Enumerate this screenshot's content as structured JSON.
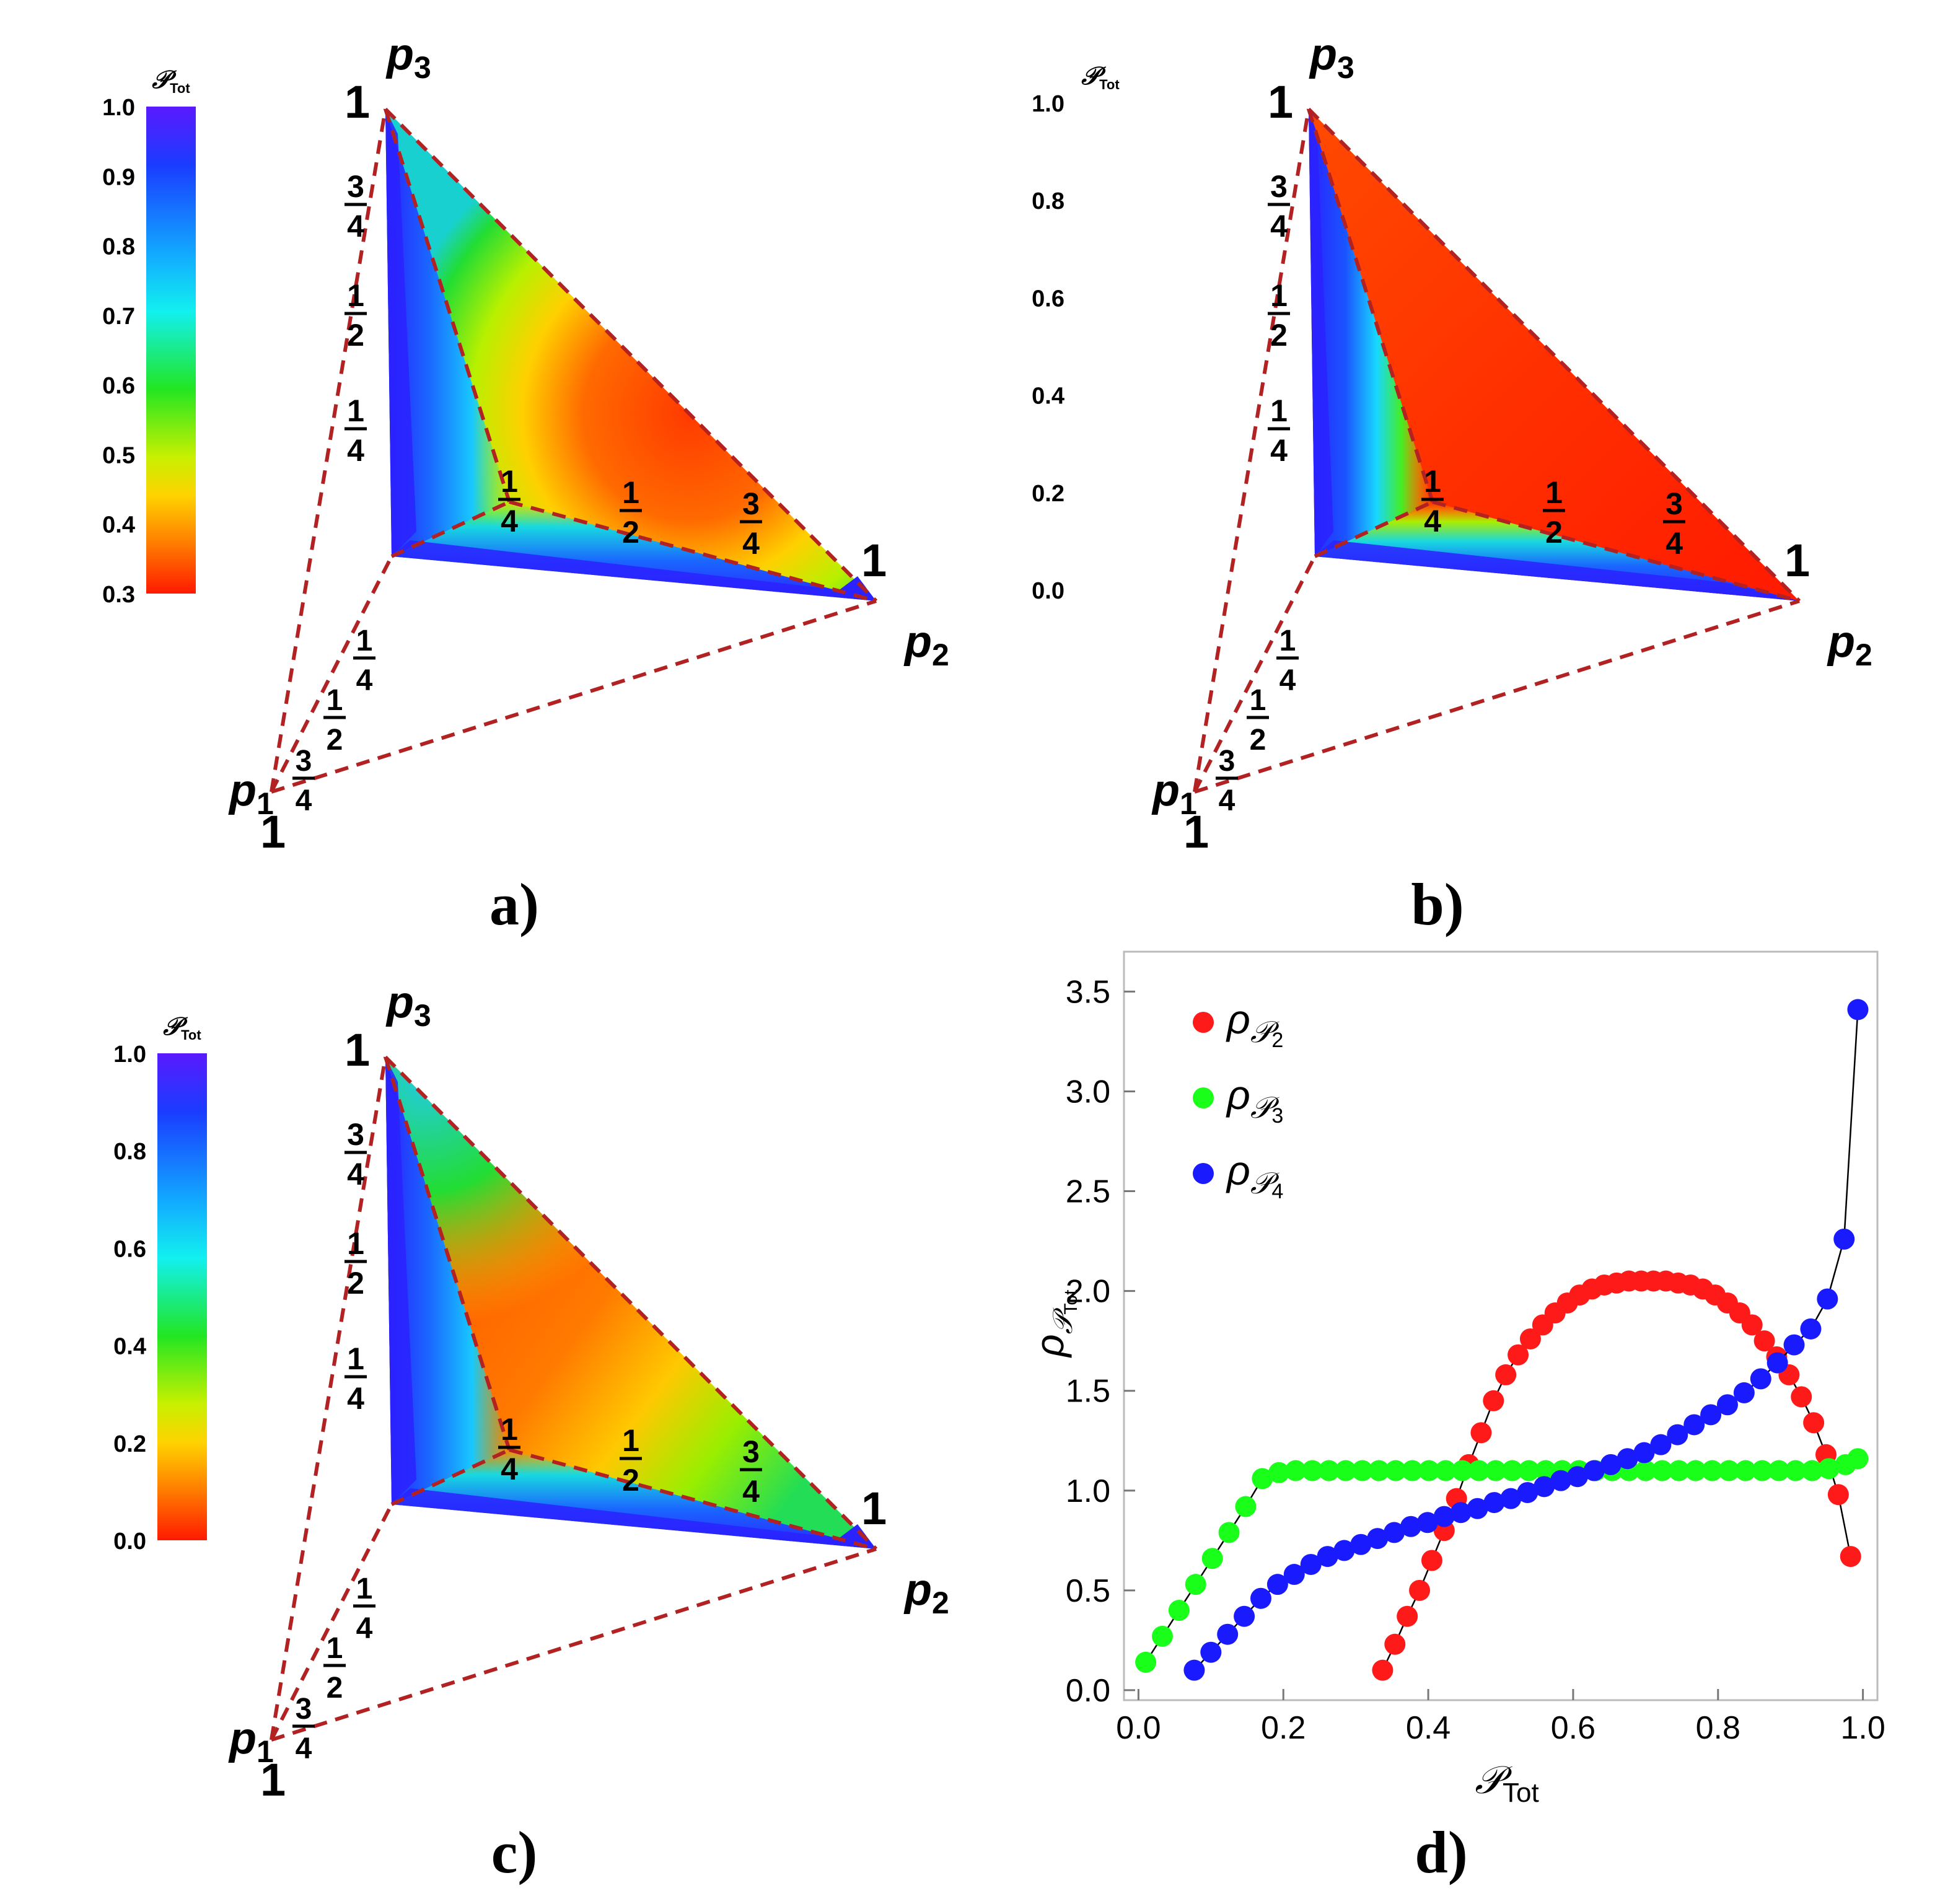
{
  "panels": [
    {
      "id": "a",
      "caption": "a)",
      "colorbar": {
        "title": "𝒫",
        "title_sub": "Tot",
        "ticks": [
          "1.0",
          "0.9",
          "0.8",
          "0.7",
          "0.6",
          "0.5",
          "0.4",
          "0.3"
        ],
        "range": [
          0.3,
          1.0
        ]
      },
      "vertex_labels": {
        "p1": "p",
        "p1_sub": "1",
        "p2": "p",
        "p2_sub": "2",
        "p3": "p",
        "p3_sub": "3",
        "one": "1"
      },
      "axis_fractions": {
        "num_34": "3",
        "den_34": "4",
        "num_12": "1",
        "den_12": "2",
        "num_14": "1",
        "den_14": "4"
      }
    },
    {
      "id": "b",
      "caption": "b)",
      "colorbar": {
        "title": "𝒫",
        "title_sub": "Tot",
        "ticks": [
          "1.0",
          "0.8",
          "0.6",
          "0.4",
          "0.2",
          "0.0"
        ],
        "range": [
          0.0,
          1.0
        ]
      }
    },
    {
      "id": "c",
      "caption": "c)",
      "colorbar": {
        "title": "𝒫",
        "title_sub": "Tot",
        "ticks": [
          "1.0",
          "0.8",
          "0.6",
          "0.4",
          "0.2",
          "0.0"
        ],
        "range": [
          0.0,
          1.0
        ]
      }
    }
  ],
  "chart_data": {
    "type": "scatter",
    "caption": "d)",
    "xlabel": "𝒫",
    "xlabel_sub": "Tot",
    "ylabel": "ρ",
    "ylabel_sub": "𝒫",
    "ylabel_subsub": "Tot",
    "xlim": [
      -0.02,
      1.02
    ],
    "ylim": [
      -0.05,
      3.7
    ],
    "xticks": [
      0.0,
      0.2,
      0.4,
      0.6,
      0.8,
      1.0
    ],
    "yticks": [
      0.0,
      0.5,
      1.0,
      1.5,
      2.0,
      2.5,
      3.0,
      3.5
    ],
    "xtick_labels": [
      "0.0",
      "0.2",
      "0.4",
      "0.6",
      "0.8",
      "1.0"
    ],
    "ytick_labels": [
      "0.0",
      "0.5",
      "1.0",
      "1.5",
      "2.0",
      "2.5",
      "3.0",
      "3.5"
    ],
    "legend_position": "top-left",
    "series": [
      {
        "name": "ρ",
        "name_sub": "𝒫",
        "name_subsub": "2",
        "color": "#ff1a1a",
        "x": [
          0.337,
          0.354,
          0.371,
          0.388,
          0.405,
          0.422,
          0.439,
          0.456,
          0.473,
          0.49,
          0.507,
          0.524,
          0.541,
          0.558,
          0.575,
          0.592,
          0.609,
          0.626,
          0.643,
          0.66,
          0.677,
          0.694,
          0.711,
          0.728,
          0.745,
          0.762,
          0.779,
          0.796,
          0.813,
          0.83,
          0.847,
          0.864,
          0.881,
          0.898,
          0.915,
          0.932,
          0.949,
          0.966,
          0.983
        ],
        "y": [
          0.1,
          0.23,
          0.37,
          0.5,
          0.65,
          0.8,
          0.96,
          1.13,
          1.29,
          1.45,
          1.58,
          1.68,
          1.76,
          1.83,
          1.89,
          1.94,
          1.98,
          2.01,
          2.03,
          2.04,
          2.05,
          2.05,
          2.05,
          2.05,
          2.04,
          2.03,
          2.01,
          1.98,
          1.94,
          1.89,
          1.83,
          1.75,
          1.67,
          1.58,
          1.47,
          1.34,
          1.18,
          0.98,
          0.67
        ]
      },
      {
        "name": "ρ",
        "name_sub": "𝒫",
        "name_subsub": "3",
        "color": "#1aff1a",
        "x": [
          0.01,
          0.033,
          0.056,
          0.079,
          0.102,
          0.125,
          0.148,
          0.171,
          0.194,
          0.217,
          0.24,
          0.263,
          0.286,
          0.309,
          0.332,
          0.355,
          0.378,
          0.401,
          0.424,
          0.447,
          0.47,
          0.493,
          0.516,
          0.539,
          0.562,
          0.585,
          0.608,
          0.631,
          0.654,
          0.677,
          0.7,
          0.723,
          0.746,
          0.769,
          0.792,
          0.815,
          0.838,
          0.861,
          0.884,
          0.907,
          0.93,
          0.953,
          0.976,
          0.993
        ],
        "y": [
          0.14,
          0.27,
          0.4,
          0.53,
          0.66,
          0.79,
          0.92,
          1.06,
          1.09,
          1.1,
          1.1,
          1.1,
          1.1,
          1.1,
          1.1,
          1.1,
          1.1,
          1.1,
          1.1,
          1.1,
          1.1,
          1.1,
          1.1,
          1.1,
          1.1,
          1.1,
          1.1,
          1.1,
          1.1,
          1.1,
          1.1,
          1.1,
          1.1,
          1.1,
          1.1,
          1.1,
          1.1,
          1.1,
          1.1,
          1.1,
          1.1,
          1.11,
          1.13,
          1.16
        ]
      },
      {
        "name": "ρ",
        "name_sub": "𝒫",
        "name_subsub": "4",
        "color": "#1a1aff",
        "x": [
          0.077,
          0.1,
          0.123,
          0.146,
          0.169,
          0.192,
          0.215,
          0.238,
          0.261,
          0.284,
          0.307,
          0.33,
          0.353,
          0.376,
          0.399,
          0.422,
          0.445,
          0.468,
          0.491,
          0.514,
          0.537,
          0.56,
          0.583,
          0.606,
          0.629,
          0.652,
          0.675,
          0.698,
          0.721,
          0.744,
          0.767,
          0.79,
          0.813,
          0.836,
          0.859,
          0.882,
          0.905,
          0.928,
          0.951,
          0.974,
          0.993
        ],
        "y": [
          0.1,
          0.19,
          0.28,
          0.37,
          0.46,
          0.53,
          0.58,
          0.63,
          0.67,
          0.7,
          0.73,
          0.76,
          0.79,
          0.82,
          0.84,
          0.87,
          0.89,
          0.91,
          0.94,
          0.96,
          0.99,
          1.02,
          1.05,
          1.07,
          1.1,
          1.13,
          1.16,
          1.19,
          1.23,
          1.28,
          1.33,
          1.38,
          1.43,
          1.49,
          1.56,
          1.64,
          1.73,
          1.81,
          1.96,
          2.26,
          3.41
        ]
      }
    ]
  }
}
